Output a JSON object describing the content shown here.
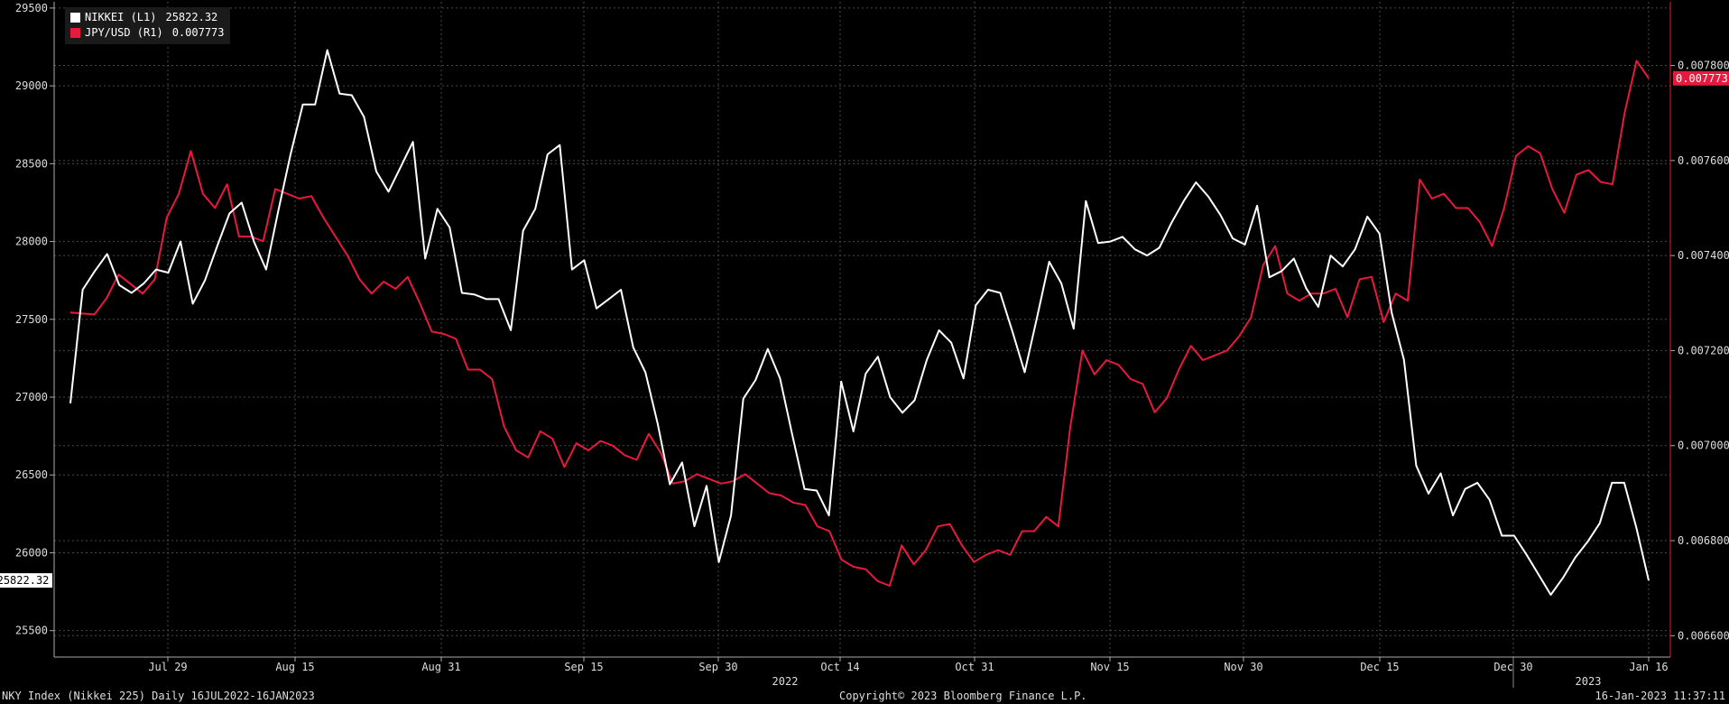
{
  "chart_data": {
    "type": "line",
    "title": "",
    "xlabel": "",
    "ylabel": "",
    "x_tick_labels": [
      "Jul 29",
      "Aug 15",
      "Aug 31",
      "Sep 15",
      "Sep 30",
      "Oct 14",
      "Oct 31",
      "Nov 15",
      "Nov 30",
      "Dec 15",
      "Dec 30",
      "Jan 16"
    ],
    "year_labels": [
      "2022",
      "2023"
    ],
    "y_left": {
      "ticks": [
        "29500",
        "29000",
        "28500",
        "28000",
        "27500",
        "27000",
        "26500",
        "26000",
        "25500"
      ],
      "range": [
        25330,
        29540
      ],
      "last_value_label": "25822.32",
      "last_value": 25822.32
    },
    "y_right": {
      "ticks": [
        "0.007800",
        "0.007600",
        "0.007400",
        "0.007200",
        "0.007000",
        "0.006800",
        "0.006600"
      ],
      "range": [
        0.006555,
        0.007934
      ],
      "last_value_label": "0.007773",
      "last_value": 0.007773
    },
    "grid": true,
    "legend_placement": "top-left",
    "series": [
      {
        "name": "NIKKEI (L1)",
        "legend_value": "25822.32",
        "axis": "left",
        "color": "#ffffff",
        "values": [
          26960,
          27690,
          27810,
          27920,
          27720,
          27670,
          27730,
          27820,
          27800,
          28000,
          27600,
          27750,
          27970,
          28180,
          28250,
          28000,
          27820,
          28200,
          28560,
          28880,
          28880,
          29230,
          28950,
          28940,
          28800,
          28450,
          28320,
          28480,
          28640,
          27890,
          28210,
          28090,
          27670,
          27660,
          27630,
          27630,
          27430,
          28070,
          28210,
          28560,
          28620,
          27820,
          27880,
          27570,
          27630,
          27690,
          27320,
          27160,
          26830,
          26440,
          26580,
          26170,
          26430,
          25940,
          26240,
          26990,
          27110,
          27310,
          27120,
          26760,
          26410,
          26400,
          26240,
          27100,
          26780,
          27150,
          27260,
          27000,
          26900,
          26980,
          27240,
          27430,
          27350,
          27120,
          27590,
          27690,
          27670,
          27420,
          27160,
          27510,
          27870,
          27730,
          27440,
          28260,
          27990,
          28000,
          28030,
          27950,
          27910,
          27960,
          28120,
          28260,
          28380,
          28290,
          28170,
          28020,
          27980,
          28230,
          27770,
          27810,
          27890,
          27700,
          27580,
          27910,
          27840,
          27950,
          28160,
          28050,
          27540,
          27240,
          26560,
          26380,
          26510,
          26240,
          26410,
          26450,
          26340,
          26110,
          26110,
          25990,
          25860,
          25730,
          25840,
          25970,
          26070,
          26190,
          26450,
          26450,
          26160,
          25822
        ]
      },
      {
        "name": "JPY/USD (R1)",
        "legend_value": "0.007773",
        "axis": "right",
        "color": "#e8193c",
        "values": [
          0.00728,
          0.007278,
          0.007276,
          0.00731,
          0.00736,
          0.00734,
          0.00732,
          0.00735,
          0.00748,
          0.00753,
          0.00762,
          0.00753,
          0.0075,
          0.00755,
          0.00744,
          0.00744,
          0.00743,
          0.00754,
          0.00753,
          0.00752,
          0.007525,
          0.00748,
          0.00744,
          0.0074,
          0.00735,
          0.00732,
          0.007345,
          0.00733,
          0.007355,
          0.0073,
          0.00724,
          0.007235,
          0.007225,
          0.00716,
          0.00716,
          0.00714,
          0.00704,
          0.00699,
          0.006975,
          0.00703,
          0.007015,
          0.006955,
          0.007005,
          0.00699,
          0.00701,
          0.007,
          0.00698,
          0.00697,
          0.007025,
          0.006985,
          0.00692,
          0.006925,
          0.00694,
          0.00693,
          0.00692,
          0.006925,
          0.00694,
          0.00692,
          0.0069,
          0.006895,
          0.00688,
          0.006875,
          0.00683,
          0.00682,
          0.00676,
          0.006745,
          0.00674,
          0.006715,
          0.006705,
          0.00679,
          0.00675,
          0.00678,
          0.00683,
          0.006835,
          0.00679,
          0.006755,
          0.00677,
          0.00678,
          0.00677,
          0.00682,
          0.00682,
          0.00685,
          0.00683,
          0.00704,
          0.0072,
          0.00715,
          0.00718,
          0.00717,
          0.00714,
          0.00713,
          0.00707,
          0.0071,
          0.00716,
          0.00721,
          0.00718,
          0.00719,
          0.0072,
          0.00723,
          0.00727,
          0.00738,
          0.00742,
          0.00732,
          0.007305,
          0.00732,
          0.00732,
          0.00733,
          0.00727,
          0.00735,
          0.007355,
          0.00726,
          0.00732,
          0.007305,
          0.00756,
          0.00752,
          0.00753,
          0.0075,
          0.0075,
          0.00747,
          0.00742,
          0.0075,
          0.00761,
          0.00763,
          0.007615,
          0.00754,
          0.00749,
          0.00757,
          0.00758,
          0.007555,
          0.00755,
          0.0077,
          0.00781,
          0.007773
        ]
      }
    ]
  },
  "footer": {
    "left": "NKY Index (Nikkei 225)  Daily 16JUL2022-16JAN2023",
    "center": "Copyright© 2023 Bloomberg Finance L.P.",
    "right": "16-Jan-2023 11:37:11"
  }
}
